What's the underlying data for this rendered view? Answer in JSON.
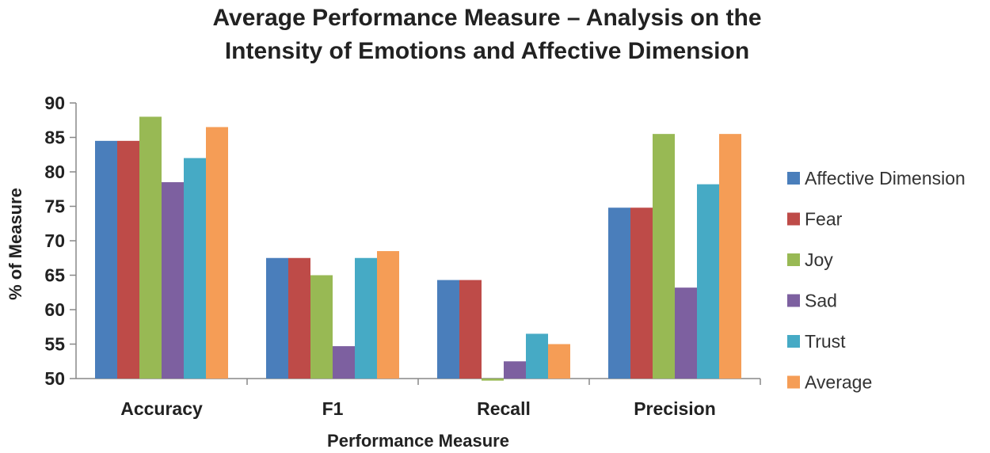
{
  "chart_data": {
    "type": "bar",
    "title_lines": [
      "Average Performance Measure – Analysis on the",
      "Intensity of Emotions and Affective Dimension"
    ],
    "xlabel": "Performance Measure",
    "ylabel": "% of Measure",
    "ylim": [
      50,
      90
    ],
    "yticks": [
      50,
      55,
      60,
      65,
      70,
      75,
      80,
      85,
      90
    ],
    "categories": [
      "Accuracy",
      "F1",
      "Recall",
      "Precision"
    ],
    "legend_position": "right",
    "series": [
      {
        "name": "Affective Dimension",
        "color": "#4a7ebb",
        "values": [
          84.5,
          67.5,
          64.3,
          74.8
        ]
      },
      {
        "name": "Fear",
        "color": "#be4b48",
        "values": [
          84.5,
          67.5,
          64.3,
          74.8
        ]
      },
      {
        "name": "Joy",
        "color": "#98b954",
        "values": [
          88,
          65,
          49.7,
          85.5
        ]
      },
      {
        "name": "Sad",
        "color": "#7d60a0",
        "values": [
          78.5,
          54.7,
          52.5,
          63.2
        ]
      },
      {
        "name": "Trust",
        "color": "#46aac5",
        "values": [
          82,
          67.5,
          56.5,
          78.2
        ]
      },
      {
        "name": "Average",
        "color": "#f59d56",
        "values": [
          86.5,
          68.5,
          55,
          85.5
        ]
      }
    ]
  }
}
